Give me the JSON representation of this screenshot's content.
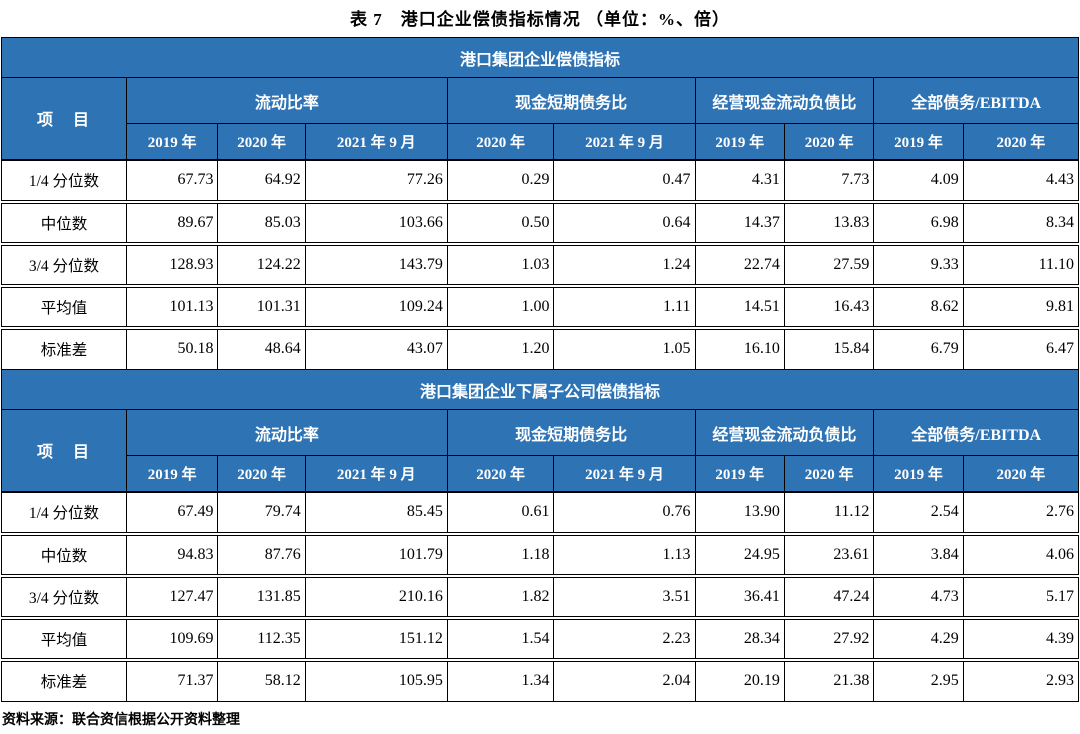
{
  "page": {
    "title": "表 7　港口企业偿债指标情况 （单位：%、倍）",
    "source_note": "资料来源：联合资信根据公开资料整理"
  },
  "colors": {
    "header_blue": "#2E74B5",
    "header_text": "#FFFFFF",
    "body_text": "#000000",
    "border": "#000000"
  },
  "table": {
    "item_column_label": "项　目",
    "column_widths_percent": [
      11.6,
      8.5,
      8.1,
      13.2,
      9.9,
      13.1,
      8.3,
      8.3,
      8.3,
      10.7
    ],
    "column_groups": [
      {
        "label": "流动比率",
        "sub_columns": [
          "2019 年",
          "2020 年",
          "2021 年 9 月"
        ]
      },
      {
        "label": "现金短期债务比",
        "sub_columns": [
          "2020 年",
          "2021 年 9 月"
        ]
      },
      {
        "label": "经营现金流动负债比",
        "sub_columns": [
          "2019 年",
          "2020 年"
        ]
      },
      {
        "label": "全部债务/EBITDA",
        "sub_columns": [
          "2019 年",
          "2020 年"
        ]
      }
    ],
    "sections": [
      {
        "title": "港口集团企业偿债指标",
        "rows": [
          {
            "label": "1/4 分位数",
            "values": [
              "67.73",
              "64.92",
              "77.26",
              "0.29",
              "0.47",
              "4.31",
              "7.73",
              "4.09",
              "4.43"
            ]
          },
          {
            "label": "中位数",
            "values": [
              "89.67",
              "85.03",
              "103.66",
              "0.50",
              "0.64",
              "14.37",
              "13.83",
              "6.98",
              "8.34"
            ]
          },
          {
            "label": "3/4 分位数",
            "values": [
              "128.93",
              "124.22",
              "143.79",
              "1.03",
              "1.24",
              "22.74",
              "27.59",
              "9.33",
              "11.10"
            ]
          },
          {
            "label": "平均值",
            "values": [
              "101.13",
              "101.31",
              "109.24",
              "1.00",
              "1.11",
              "14.51",
              "16.43",
              "8.62",
              "9.81"
            ]
          },
          {
            "label": "标准差",
            "values": [
              "50.18",
              "48.64",
              "43.07",
              "1.20",
              "1.05",
              "16.10",
              "15.84",
              "6.79",
              "6.47"
            ]
          }
        ]
      },
      {
        "title": "港口集团企业下属子公司偿债指标",
        "rows": [
          {
            "label": "1/4 分位数",
            "values": [
              "67.49",
              "79.74",
              "85.45",
              "0.61",
              "0.76",
              "13.90",
              "11.12",
              "2.54",
              "2.76"
            ]
          },
          {
            "label": "中位数",
            "values": [
              "94.83",
              "87.76",
              "101.79",
              "1.18",
              "1.13",
              "24.95",
              "23.61",
              "3.84",
              "4.06"
            ]
          },
          {
            "label": "3/4 分位数",
            "values": [
              "127.47",
              "131.85",
              "210.16",
              "1.82",
              "3.51",
              "36.41",
              "47.24",
              "4.73",
              "5.17"
            ]
          },
          {
            "label": "平均值",
            "values": [
              "109.69",
              "112.35",
              "151.12",
              "1.54",
              "2.23",
              "28.34",
              "27.92",
              "4.29",
              "4.39"
            ]
          },
          {
            "label": "标准差",
            "values": [
              "71.37",
              "58.12",
              "105.95",
              "1.34",
              "2.04",
              "20.19",
              "21.38",
              "2.95",
              "2.93"
            ]
          }
        ]
      }
    ]
  }
}
